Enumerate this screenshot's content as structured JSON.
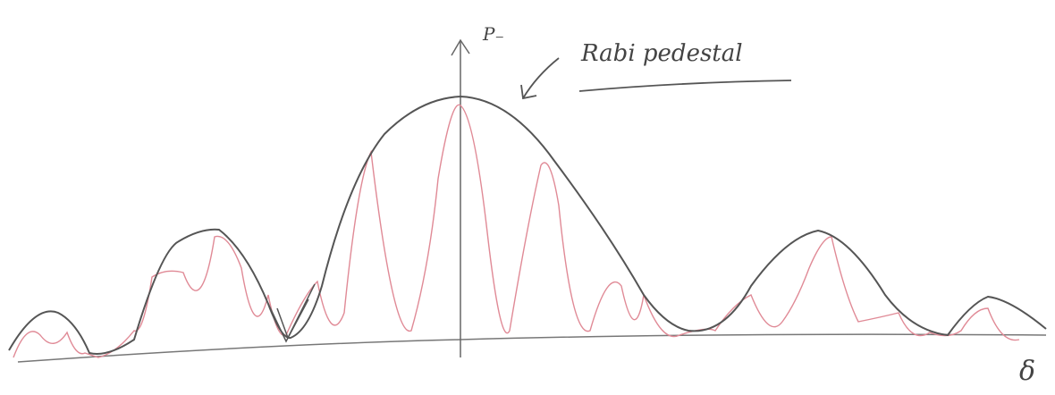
{
  "axis_label": "P₋",
  "annotation": "Rabi pedestal",
  "x_axis_label": "δ"
}
